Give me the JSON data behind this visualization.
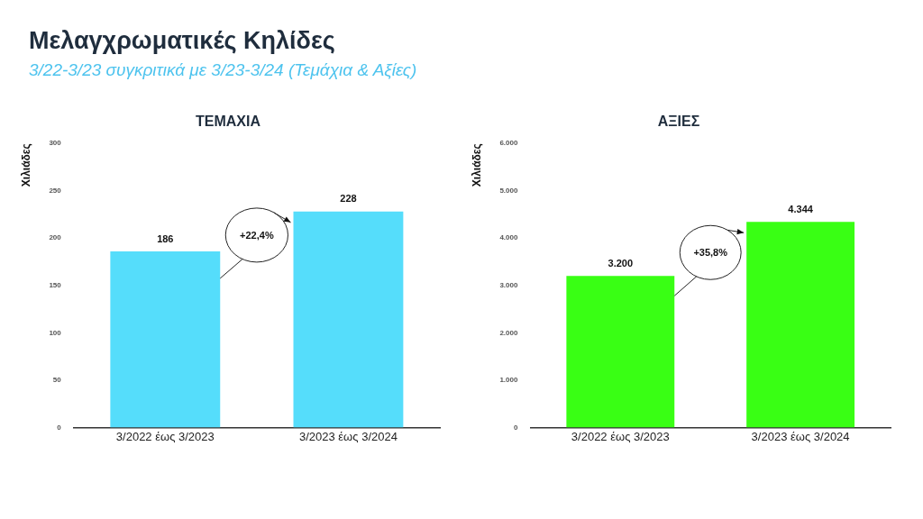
{
  "chart_data": [
    {
      "type": "other",
      "title": "Μελαγχρωματικές Κηλίδες",
      "subtitle": "3/22-3/23 συγκριτικά με 3/23-3/24 (Τεμάχια & Αξίες)"
    },
    {
      "type": "bar",
      "title": "ΤΕΜΑΧΙΑ",
      "ylabel": "Χιλιάδες",
      "categories": [
        "3/2022 έως 3/2023",
        "3/2023 έως 3/2024"
      ],
      "values": [
        186,
        228
      ],
      "color": "#55ddfb",
      "ylim": [
        0,
        300
      ],
      "yticks": [
        0,
        50,
        100,
        150,
        200,
        250,
        300
      ],
      "data_labels": true,
      "annotations": [
        "+22,4%"
      ],
      "grid": false,
      "legend": false
    },
    {
      "type": "bar",
      "title": "ΑΞΙΕΣ",
      "ylabel": "Χιλιάδες",
      "categories": [
        "3/2022 έως 3/2023",
        "3/2023 έως 3/2024"
      ],
      "values": [
        3200,
        4344
      ],
      "value_labels": [
        "3.200",
        "4.344"
      ],
      "color": "#39ff14",
      "ylim": [
        0,
        6000
      ],
      "yticks": [
        0,
        {
          "value": 1000,
          "label": "1.000"
        },
        {
          "value": 2000,
          "label": "2.000"
        },
        {
          "value": 3000,
          "label": "3.000"
        },
        {
          "value": 4000,
          "label": "4.000"
        },
        {
          "value": 5000,
          "label": "5.000"
        },
        {
          "value": 6000,
          "label": "6.000"
        }
      ],
      "annotations": [
        "+35,8%"
      ],
      "grid": false,
      "legend": false
    }
  ]
}
